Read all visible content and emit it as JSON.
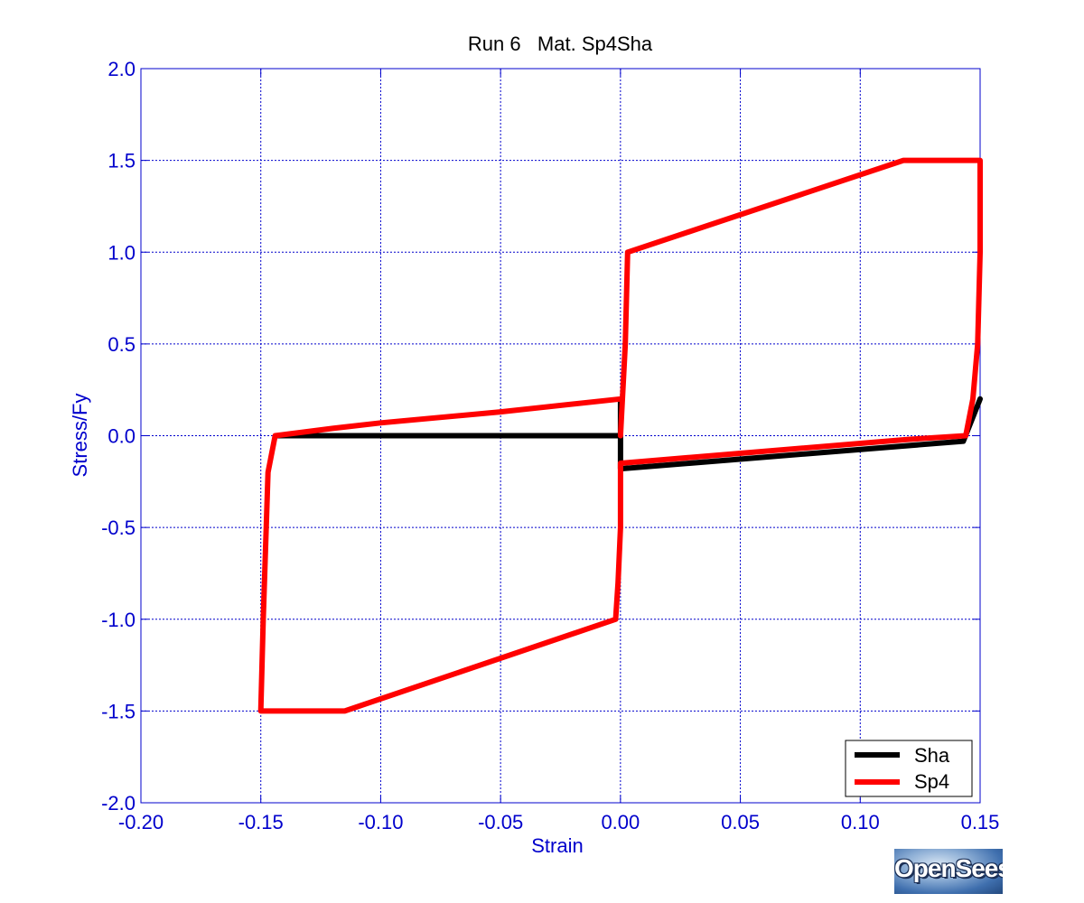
{
  "chart_data": {
    "type": "line",
    "title": "Run 6   Mat. Sp4Sha",
    "xlabel": "Strain",
    "ylabel": "Stress/Fy",
    "xlim": [
      -0.2,
      0.15
    ],
    "ylim": [
      -2.0,
      2.0
    ],
    "xticks": [
      -0.2,
      -0.15,
      -0.1,
      -0.05,
      0.0,
      0.05,
      0.1,
      0.15
    ],
    "yticks": [
      -2.0,
      -1.5,
      -1.0,
      -0.5,
      0.0,
      0.5,
      1.0,
      1.5,
      2.0
    ],
    "xtick_labels": [
      "-0.20",
      "-0.15",
      "-0.10",
      "-0.05",
      "0.00",
      "0.05",
      "0.10",
      "0.15"
    ],
    "ytick_labels": [
      "-2.0",
      "-1.5",
      "-1.0",
      "-0.5",
      "0.0",
      "0.5",
      "1.0",
      "1.5",
      "2.0"
    ],
    "grid": true,
    "legend_position": "bottom-right",
    "series": [
      {
        "name": "Sha",
        "color": "#000000",
        "x": [
          0.0,
          0.0,
          -0.143,
          0.0,
          0.0,
          0.143,
          0.15
        ],
        "y": [
          0.2,
          0.0,
          0.0,
          0.0,
          -0.18,
          -0.03,
          0.2
        ]
      },
      {
        "name": "Sp4",
        "color": "#ff0000",
        "x": [
          0.0,
          0.002,
          0.003,
          0.118,
          0.15,
          0.15,
          0.149,
          0.147,
          0.144,
          0.12,
          0.0,
          0.0,
          -0.001,
          -0.002,
          -0.115,
          -0.15,
          -0.149,
          -0.147,
          -0.144,
          -0.12,
          -0.1,
          -0.05,
          0.0
        ],
        "y": [
          0.0,
          0.5,
          1.0,
          1.5,
          1.5,
          1.0,
          0.5,
          0.2,
          0.0,
          -0.02,
          -0.15,
          -0.5,
          -0.8,
          -1.0,
          -1.5,
          -1.5,
          -1.0,
          -0.2,
          0.0,
          0.04,
          0.07,
          0.13,
          0.2
        ]
      }
    ]
  },
  "logo": {
    "text": "OpenSees"
  }
}
